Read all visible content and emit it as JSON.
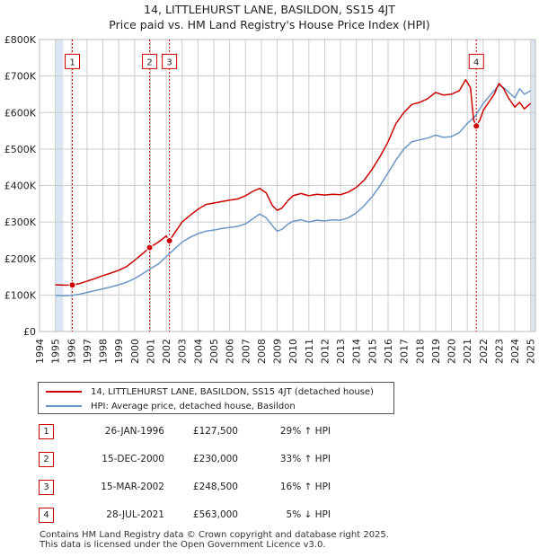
{
  "title": "14, LITTLEHURST LANE, BASILDON, SS15 4JT",
  "subtitle": "Price paid vs. HM Land Registry's House Price Index (HPI)",
  "colors": {
    "property": "#cc0000",
    "hpi": "#6b97c7",
    "shade": "#dce6f2",
    "marker": "#cc0000",
    "grid": "#cccccc"
  },
  "chart_data": {
    "type": "line",
    "ylim": [
      0,
      800000
    ],
    "xlim": [
      1994,
      2025.3
    ],
    "ytick_values": [
      0,
      100000,
      200000,
      300000,
      400000,
      500000,
      600000,
      700000,
      800000
    ],
    "ytick_labels": [
      "£0",
      "£100K",
      "£200K",
      "£300K",
      "£400K",
      "£500K",
      "£600K",
      "£700K",
      "£800K"
    ],
    "xtick_values": [
      1994,
      1995,
      1996,
      1997,
      1998,
      1999,
      2000,
      2001,
      2002,
      2003,
      2004,
      2005,
      2006,
      2007,
      2008,
      2009,
      2010,
      2011,
      2012,
      2013,
      2014,
      2015,
      2016,
      2017,
      2018,
      2019,
      2020,
      2021,
      2022,
      2023,
      2024,
      2025
    ],
    "xtick_labels": [
      "1994",
      "1995",
      "1996",
      "1997",
      "1998",
      "1999",
      "2000",
      "2001",
      "2002",
      "2003",
      "2004",
      "2005",
      "2006",
      "2007",
      "2008",
      "2009",
      "2010",
      "2011",
      "2012",
      "2013",
      "2014",
      "2015",
      "2016",
      "2017",
      "2018",
      "2019",
      "2020",
      "2021",
      "2022",
      "2023",
      "2024",
      "2025"
    ],
    "shaded_ranges": [
      [
        1995.0,
        1995.5
      ],
      [
        2025.0,
        2025.3
      ]
    ],
    "series": [
      {
        "name": "14, LITTLEHURST LANE, BASILDON, SS15 4JT (detached house)",
        "color": "#cc0000",
        "points": [
          [
            1995.0,
            128000
          ],
          [
            1995.5,
            127000
          ],
          [
            1996.07,
            127500
          ],
          [
            1996.5,
            131000
          ],
          [
            1997.0,
            138000
          ],
          [
            1997.5,
            145000
          ],
          [
            1998.0,
            153000
          ],
          [
            1998.5,
            160000
          ],
          [
            1999.0,
            168000
          ],
          [
            1999.5,
            178000
          ],
          [
            2000.0,
            195000
          ],
          [
            2000.5,
            213000
          ],
          [
            2000.95,
            230000
          ],
          [
            2001.5,
            245000
          ],
          [
            2002.0,
            262000
          ],
          [
            2002.2,
            248500
          ],
          [
            2002.5,
            268000
          ],
          [
            2003.0,
            300000
          ],
          [
            2003.5,
            318000
          ],
          [
            2004.0,
            335000
          ],
          [
            2004.5,
            348000
          ],
          [
            2005.0,
            352000
          ],
          [
            2005.5,
            356000
          ],
          [
            2006.0,
            360000
          ],
          [
            2006.5,
            363000
          ],
          [
            2007.0,
            372000
          ],
          [
            2007.5,
            385000
          ],
          [
            2007.9,
            392000
          ],
          [
            2008.3,
            380000
          ],
          [
            2008.7,
            345000
          ],
          [
            2009.0,
            332000
          ],
          [
            2009.3,
            338000
          ],
          [
            2009.7,
            360000
          ],
          [
            2010.0,
            372000
          ],
          [
            2010.5,
            378000
          ],
          [
            2011.0,
            372000
          ],
          [
            2011.5,
            376000
          ],
          [
            2012.0,
            374000
          ],
          [
            2012.5,
            376000
          ],
          [
            2013.0,
            375000
          ],
          [
            2013.5,
            382000
          ],
          [
            2014.0,
            395000
          ],
          [
            2014.5,
            415000
          ],
          [
            2015.0,
            445000
          ],
          [
            2015.5,
            480000
          ],
          [
            2016.0,
            520000
          ],
          [
            2016.5,
            570000
          ],
          [
            2017.0,
            600000
          ],
          [
            2017.5,
            622000
          ],
          [
            2018.0,
            628000
          ],
          [
            2018.5,
            638000
          ],
          [
            2019.0,
            655000
          ],
          [
            2019.5,
            648000
          ],
          [
            2020.0,
            650000
          ],
          [
            2020.5,
            660000
          ],
          [
            2020.9,
            690000
          ],
          [
            2021.2,
            668000
          ],
          [
            2021.4,
            580000
          ],
          [
            2021.57,
            563000
          ],
          [
            2021.8,
            580000
          ],
          [
            2022.0,
            605000
          ],
          [
            2022.3,
            625000
          ],
          [
            2022.7,
            650000
          ],
          [
            2023.0,
            680000
          ],
          [
            2023.3,
            665000
          ],
          [
            2023.6,
            640000
          ],
          [
            2024.0,
            615000
          ],
          [
            2024.3,
            628000
          ],
          [
            2024.6,
            610000
          ],
          [
            2025.0,
            625000
          ]
        ]
      },
      {
        "name": "HPI: Average price, detached house, Basildon",
        "color": "#6b97c7",
        "points": [
          [
            1995.0,
            99000
          ],
          [
            1995.5,
            98000
          ],
          [
            1996.0,
            99000
          ],
          [
            1996.5,
            102000
          ],
          [
            1997.0,
            107000
          ],
          [
            1997.5,
            112000
          ],
          [
            1998.0,
            117000
          ],
          [
            1998.5,
            122000
          ],
          [
            1999.0,
            128000
          ],
          [
            1999.5,
            135000
          ],
          [
            2000.0,
            145000
          ],
          [
            2000.5,
            158000
          ],
          [
            2001.0,
            172000
          ],
          [
            2001.5,
            185000
          ],
          [
            2002.0,
            205000
          ],
          [
            2002.5,
            225000
          ],
          [
            2003.0,
            245000
          ],
          [
            2003.5,
            258000
          ],
          [
            2004.0,
            268000
          ],
          [
            2004.5,
            275000
          ],
          [
            2005.0,
            278000
          ],
          [
            2005.5,
            282000
          ],
          [
            2006.0,
            285000
          ],
          [
            2006.5,
            288000
          ],
          [
            2007.0,
            295000
          ],
          [
            2007.5,
            310000
          ],
          [
            2007.9,
            322000
          ],
          [
            2008.3,
            312000
          ],
          [
            2008.7,
            290000
          ],
          [
            2009.0,
            275000
          ],
          [
            2009.3,
            280000
          ],
          [
            2009.7,
            295000
          ],
          [
            2010.0,
            302000
          ],
          [
            2010.5,
            306000
          ],
          [
            2011.0,
            300000
          ],
          [
            2011.5,
            305000
          ],
          [
            2012.0,
            303000
          ],
          [
            2012.5,
            306000
          ],
          [
            2013.0,
            305000
          ],
          [
            2013.5,
            312000
          ],
          [
            2014.0,
            325000
          ],
          [
            2014.5,
            345000
          ],
          [
            2015.0,
            370000
          ],
          [
            2015.5,
            400000
          ],
          [
            2016.0,
            435000
          ],
          [
            2016.5,
            470000
          ],
          [
            2017.0,
            500000
          ],
          [
            2017.5,
            520000
          ],
          [
            2018.0,
            525000
          ],
          [
            2018.5,
            530000
          ],
          [
            2019.0,
            538000
          ],
          [
            2019.5,
            532000
          ],
          [
            2020.0,
            534000
          ],
          [
            2020.5,
            545000
          ],
          [
            2021.0,
            570000
          ],
          [
            2021.5,
            590000
          ],
          [
            2022.0,
            625000
          ],
          [
            2022.5,
            650000
          ],
          [
            2023.0,
            675000
          ],
          [
            2023.3,
            668000
          ],
          [
            2023.7,
            652000
          ],
          [
            2024.0,
            640000
          ],
          [
            2024.3,
            665000
          ],
          [
            2024.6,
            650000
          ],
          [
            2025.0,
            660000
          ]
        ]
      }
    ],
    "transactions": [
      {
        "id": "1",
        "x": 1996.07,
        "price": 127500
      },
      {
        "id": "2",
        "x": 2000.95,
        "price": 230000
      },
      {
        "id": "3",
        "x": 2002.2,
        "price": 248500
      },
      {
        "id": "4",
        "x": 2021.57,
        "price": 563000
      }
    ],
    "marker_label_value": 740000
  },
  "legend": {
    "property_label": "14, LITTLEHURST LANE, BASILDON, SS15 4JT (detached house)",
    "hpi_label": "HPI: Average price, detached house, Basildon"
  },
  "transactions_table": [
    {
      "id": "1",
      "date": "26-JAN-1996",
      "price": "£127,500",
      "hpi": "29% ↑ HPI"
    },
    {
      "id": "2",
      "date": "15-DEC-2000",
      "price": "£230,000",
      "hpi": "33% ↑ HPI"
    },
    {
      "id": "3",
      "date": "15-MAR-2002",
      "price": "£248,500",
      "hpi": "16% ↑ HPI"
    },
    {
      "id": "4",
      "date": "28-JUL-2021",
      "price": "£563,000",
      "hpi": "5% ↓ HPI"
    }
  ],
  "footer": {
    "line1": "Contains HM Land Registry data © Crown copyright and database right 2025.",
    "line2": "This data is licensed under the Open Government Licence v3.0."
  }
}
